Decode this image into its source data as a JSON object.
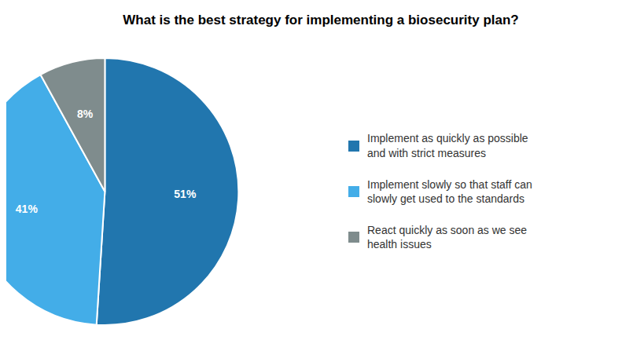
{
  "chart_data": {
    "type": "pie",
    "title": "What is the best strategy for implementing a biosecurity plan?",
    "categories": [
      "Implement as quickly as possible\nand with strict measures",
      "Implement slowly so that staff can\nslowly get used to the standards",
      "React quickly as soon as we see\nhealth issues"
    ],
    "values": [
      51,
      41,
      8
    ],
    "value_labels": [
      "51%",
      "41%",
      "8%"
    ],
    "colors": [
      "#2176AE",
      "#43ADE8",
      "#7F8C8D"
    ],
    "data_labels": true
  }
}
